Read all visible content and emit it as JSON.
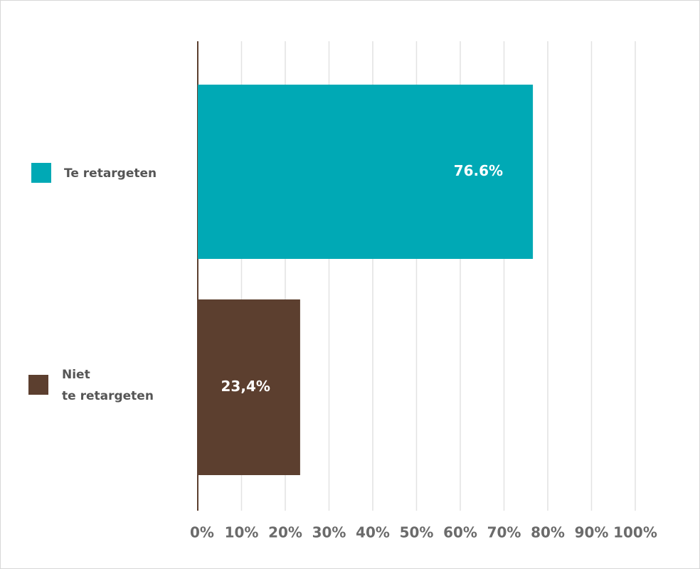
{
  "chart_data": {
    "type": "bar",
    "orientation": "horizontal",
    "categories": [
      "Te retargeten",
      "Niet\nte retargeten"
    ],
    "values": [
      76.6,
      23.4
    ],
    "value_labels": [
      "76.6%",
      "23,4%"
    ],
    "colors": [
      "#00a9b5",
      "#5c3f2f"
    ],
    "xlim": [
      0,
      100
    ],
    "xticks": [
      {
        "value": 0,
        "label": "0%"
      },
      {
        "value": 10,
        "label": "10%"
      },
      {
        "value": 20,
        "label": "20%"
      },
      {
        "value": 30,
        "label": "30%"
      },
      {
        "value": 40,
        "label": "40%"
      },
      {
        "value": 50,
        "label": "50%"
      },
      {
        "value": 60,
        "label": "60%"
      },
      {
        "value": 70,
        "label": "70%"
      },
      {
        "value": 80,
        "label": "80%"
      },
      {
        "value": 90,
        "label": "90%"
      },
      {
        "value": 100,
        "label": "100%"
      }
    ],
    "grid": true
  }
}
